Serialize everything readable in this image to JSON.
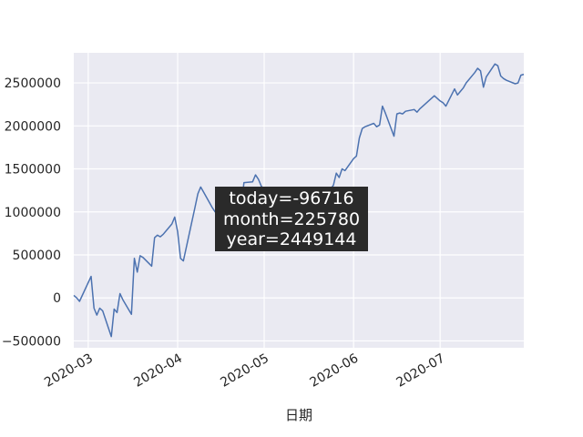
{
  "chart_data": {
    "type": "line",
    "title": "",
    "xlabel": "日期",
    "ylabel": "",
    "grid": true,
    "legend": "none",
    "xlim": [
      "2020-02-25",
      "2020-07-30"
    ],
    "ylim": [
      -580000,
      2850000
    ],
    "x_ticks": [
      {
        "date": "2020-03-01",
        "label": "2020-03"
      },
      {
        "date": "2020-04-01",
        "label": "2020-04"
      },
      {
        "date": "2020-05-01",
        "label": "2020-05"
      },
      {
        "date": "2020-06-01",
        "label": "2020-06"
      },
      {
        "date": "2020-07-01",
        "label": "2020-07"
      }
    ],
    "y_ticks": [
      {
        "value": -500000,
        "label": "−500000"
      },
      {
        "value": 0,
        "label": "0"
      },
      {
        "value": 500000,
        "label": "500000"
      },
      {
        "value": 1000000,
        "label": "1000000"
      },
      {
        "value": 1500000,
        "label": "1500000"
      },
      {
        "value": 2000000,
        "label": "2000000"
      },
      {
        "value": 2500000,
        "label": "2500000"
      }
    ],
    "colors": {
      "line": "#4c72b0",
      "plot_bg": "#eaeaf2",
      "grid": "#ffffff",
      "annotation_bg": "#2a2a2a"
    },
    "annotation": {
      "lines": [
        "today=-96716",
        "month=225780",
        "year=2449144"
      ],
      "anchor_date": "2020-05-10",
      "anchor_value": 1000000
    },
    "series": [
      {
        "x": [
          "2020-02-25",
          "2020-02-26",
          "2020-02-27",
          "2020-03-02",
          "2020-03-03",
          "2020-03-04",
          "2020-03-05",
          "2020-03-06",
          "2020-03-09",
          "2020-03-10",
          "2020-03-11",
          "2020-03-12",
          "2020-03-13",
          "2020-03-16",
          "2020-03-17",
          "2020-03-18",
          "2020-03-19",
          "2020-03-20",
          "2020-03-23",
          "2020-03-24",
          "2020-03-25",
          "2020-03-26",
          "2020-03-27",
          "2020-03-30",
          "2020-03-31",
          "2020-04-01",
          "2020-04-02",
          "2020-04-03",
          "2020-04-07",
          "2020-04-08",
          "2020-04-09",
          "2020-04-10",
          "2020-04-13",
          "2020-04-14",
          "2020-04-15",
          "2020-04-16",
          "2020-04-17",
          "2020-04-20",
          "2020-04-21",
          "2020-04-22",
          "2020-04-23",
          "2020-04-24",
          "2020-04-27",
          "2020-04-28",
          "2020-04-29",
          "2020-04-30",
          "2020-05-06",
          "2020-05-07",
          "2020-05-08",
          "2020-05-11",
          "2020-05-12",
          "2020-05-13",
          "2020-05-14",
          "2020-05-15",
          "2020-05-18",
          "2020-05-19",
          "2020-05-20",
          "2020-05-21",
          "2020-05-22",
          "2020-05-25",
          "2020-05-26",
          "2020-05-27",
          "2020-05-28",
          "2020-05-29",
          "2020-06-01",
          "2020-06-02",
          "2020-06-03",
          "2020-06-04",
          "2020-06-05",
          "2020-06-08",
          "2020-06-09",
          "2020-06-10",
          "2020-06-11",
          "2020-06-12",
          "2020-06-15",
          "2020-06-16",
          "2020-06-17",
          "2020-06-18",
          "2020-06-19",
          "2020-06-22",
          "2020-06-23",
          "2020-06-24",
          "2020-06-29",
          "2020-06-30",
          "2020-07-01",
          "2020-07-02",
          "2020-07-03",
          "2020-07-06",
          "2020-07-07",
          "2020-07-08",
          "2020-07-09",
          "2020-07-10",
          "2020-07-13",
          "2020-07-14",
          "2020-07-15",
          "2020-07-16",
          "2020-07-17",
          "2020-07-20",
          "2020-07-21",
          "2020-07-22",
          "2020-07-23",
          "2020-07-24",
          "2020-07-27",
          "2020-07-28",
          "2020-07-29",
          "2020-07-30"
        ],
        "values": [
          30000,
          0,
          -40000,
          250000,
          -120000,
          -200000,
          -120000,
          -150000,
          -450000,
          -130000,
          -170000,
          50000,
          -20000,
          -190000,
          460000,
          300000,
          490000,
          470000,
          370000,
          700000,
          730000,
          710000,
          740000,
          860000,
          940000,
          770000,
          460000,
          430000,
          1050000,
          1210000,
          1290000,
          1230000,
          1050000,
          1000000,
          960000,
          910000,
          610000,
          960000,
          1020000,
          1080000,
          1040000,
          1340000,
          1350000,
          1430000,
          1380000,
          1300000,
          1050000,
          800000,
          680000,
          720000,
          700000,
          760000,
          820000,
          930000,
          1010000,
          1050000,
          1120000,
          1100000,
          1180000,
          1310000,
          1450000,
          1400000,
          1500000,
          1480000,
          1620000,
          1650000,
          1860000,
          1970000,
          1990000,
          2030000,
          1990000,
          2010000,
          2230000,
          2150000,
          1880000,
          2140000,
          2150000,
          2140000,
          2170000,
          2190000,
          2160000,
          2200000,
          2350000,
          2320000,
          2290000,
          2270000,
          2230000,
          2430000,
          2360000,
          2400000,
          2440000,
          2500000,
          2620000,
          2670000,
          2640000,
          2450000,
          2570000,
          2720000,
          2700000,
          2580000,
          2550000,
          2530000,
          2490000,
          2500000,
          2590000,
          2600000
        ],
        "note": "values estimated from the plot"
      }
    ]
  }
}
